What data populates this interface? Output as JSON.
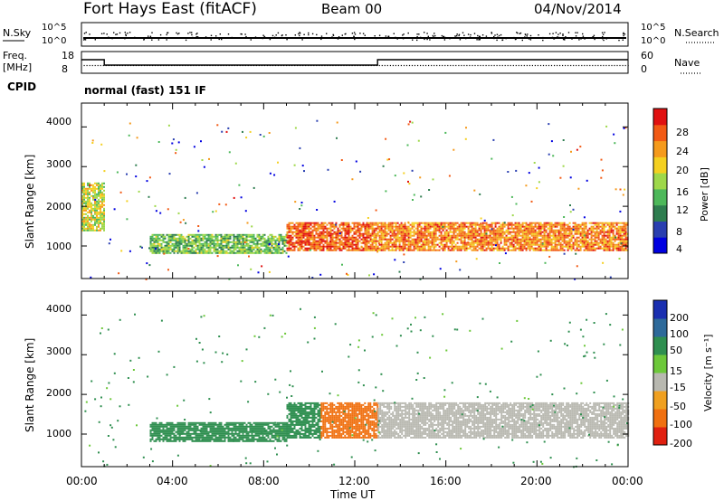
{
  "header": {
    "station": "Fort Hays East (fitACF)",
    "beam": "Beam 00",
    "date": "04/Nov/2014"
  },
  "noise_panel": {
    "left_label": "N.Sky",
    "right_label": "N.Search",
    "left_ticks": [
      "10^5",
      "10^0"
    ],
    "right_ticks": [
      "10^5",
      "10^0"
    ]
  },
  "freq_panel": {
    "left_label_line1": "Freq.",
    "left_label_line2": "[MHz]",
    "right_label": "Nave",
    "left_ticks": [
      "18",
      "8"
    ],
    "right_ticks": [
      "60",
      "0"
    ],
    "freq_segments": [
      {
        "start_hour": 0.0,
        "end_hour": 1.0,
        "mhz": 14.5
      },
      {
        "start_hour": 1.0,
        "end_hour": 13.0,
        "mhz": 11.5
      },
      {
        "start_hour": 13.0,
        "end_hour": 24.0,
        "mhz": 14.5
      }
    ],
    "nave_level": 22
  },
  "cpid": {
    "label": "CPID",
    "program": "normal (fast) 151 IF"
  },
  "power_panel": {
    "ylabel": "Slant Range [km]",
    "yticks": [
      "4000",
      "3000",
      "2000",
      "1000"
    ],
    "colorbar_label": "Power [dB]",
    "colorbar_ticks": [
      "28",
      "24",
      "20",
      "16",
      "12",
      "8",
      "4"
    ],
    "colors": [
      "#0000e0",
      "#2a3fb0",
      "#2e7d4f",
      "#4db85a",
      "#9ed84a",
      "#f4d020",
      "#f59a1c",
      "#f25a14",
      "#e01010"
    ]
  },
  "velocity_panel": {
    "ylabel": "Slant Range [km]",
    "yticks": [
      "4000",
      "3000",
      "2000",
      "1000"
    ],
    "colorbar_label": "Velocity [m s⁻¹]",
    "colorbar_ticks": [
      "200",
      "100",
      "50",
      "15",
      "-15",
      "-50",
      "-100",
      "-200"
    ],
    "colors": [
      "#1a2fb0",
      "#2e6a9a",
      "#2f8f50",
      "#6dc83a",
      "#b8b8b0",
      "#f0a020",
      "#f07010",
      "#e02010"
    ]
  },
  "x_axis": {
    "ticks": [
      "00:00",
      "04:00",
      "08:00",
      "12:00",
      "16:00",
      "20:00",
      "00:00"
    ],
    "label": "Time UT"
  },
  "chart_data": {
    "type": "heatmap",
    "title": "Fort Hays East (fitACF)  Beam 00  04/Nov/2014",
    "xlabel": "Time UT",
    "ylabel": "Slant Range [km]",
    "xlim_hours": [
      0,
      24
    ],
    "ylim_km": [
      180,
      4600
    ],
    "power_bands_db": [
      {
        "start_hour": 3.0,
        "end_hour": 9.0,
        "range_km": [
          800,
          1300
        ],
        "power_db": 14
      },
      {
        "start_hour": 9.0,
        "end_hour": 12.5,
        "range_km": [
          900,
          1600
        ],
        "power_db": 26
      },
      {
        "start_hour": 12.5,
        "end_hour": 24.0,
        "range_km": [
          900,
          1600
        ],
        "power_db": 24
      },
      {
        "start_hour": 0.0,
        "end_hour": 1.0,
        "range_km": [
          1400,
          2600
        ],
        "power_db": 18
      }
    ],
    "velocity_bands_ms": [
      {
        "start_hour": 3.0,
        "end_hour": 9.0,
        "range_km": [
          800,
          1300
        ],
        "velocity": 40
      },
      {
        "start_hour": 9.0,
        "end_hour": 10.5,
        "range_km": [
          900,
          1800
        ],
        "velocity": 60
      },
      {
        "start_hour": 10.5,
        "end_hour": 13.0,
        "range_km": [
          900,
          1800
        ],
        "velocity": -80
      },
      {
        "start_hour": 13.0,
        "end_hour": 24.0,
        "range_km": [
          900,
          1800
        ],
        "velocity": 0
      }
    ]
  }
}
